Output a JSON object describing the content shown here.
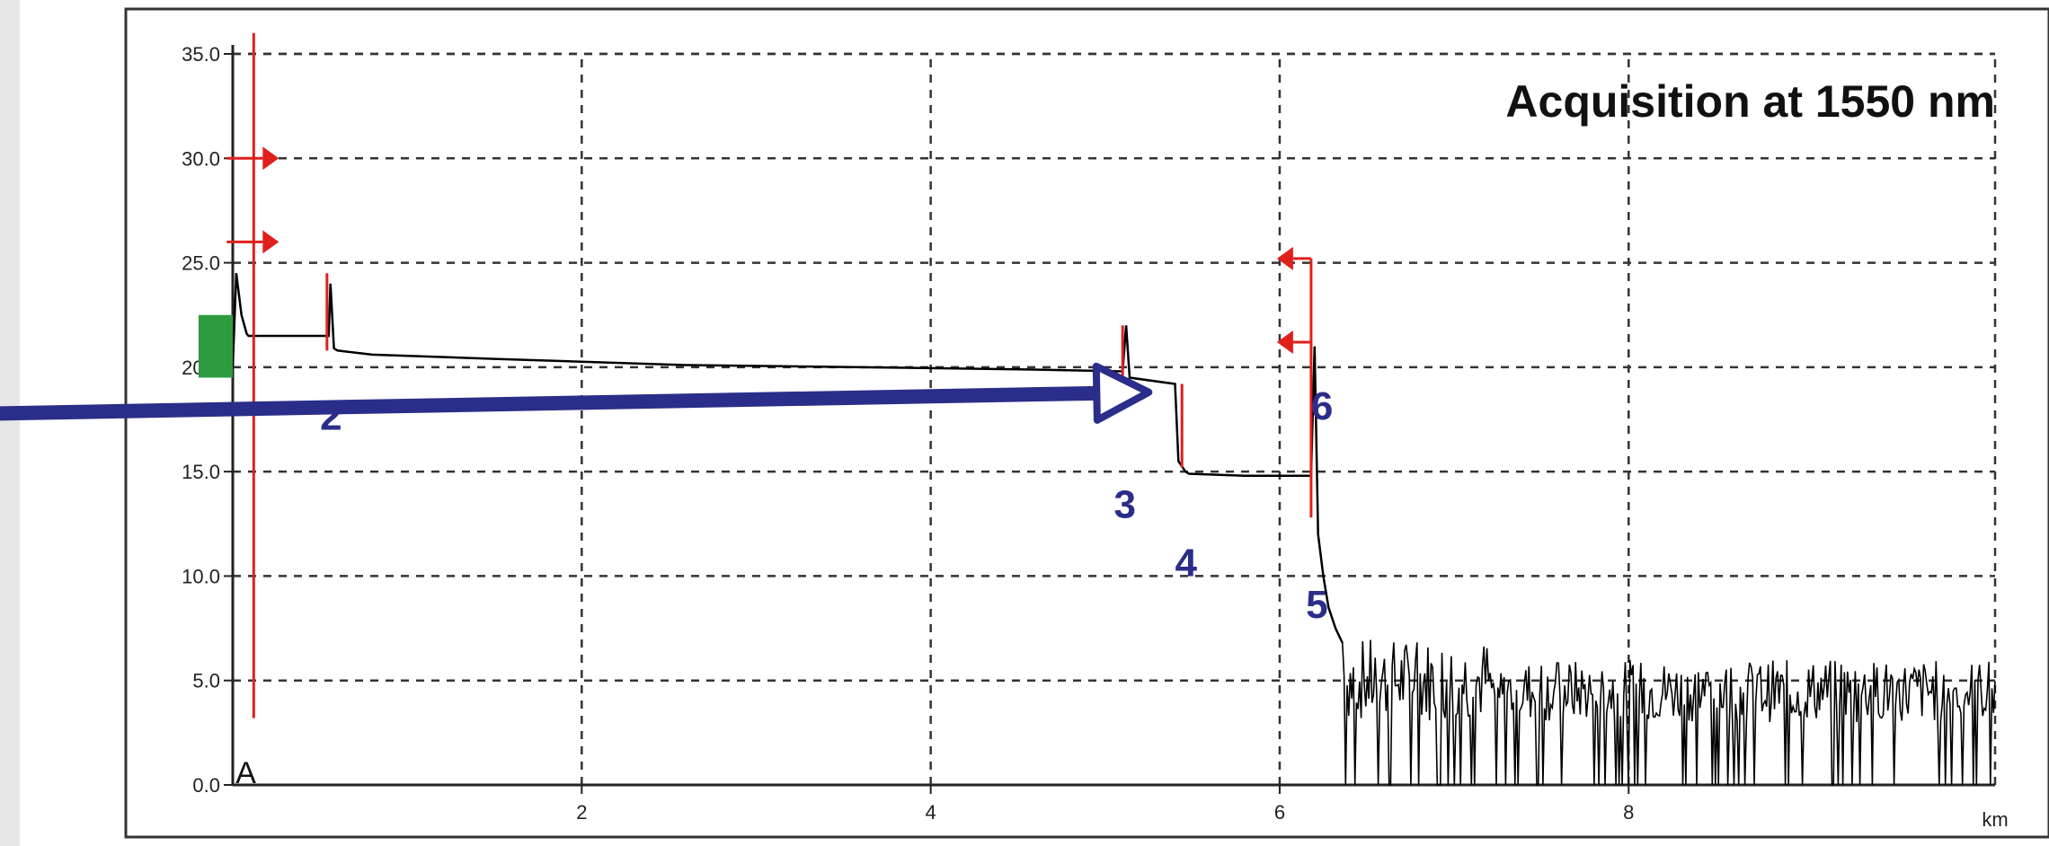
{
  "chart_data": {
    "type": "line",
    "title": "Acquisition at 1550 nm",
    "xlabel": "",
    "ylabel": "",
    "x_unit_label": "km",
    "xlim": [
      0,
      10.1
    ],
    "ylim": [
      0,
      35
    ],
    "xticks": [
      2,
      4,
      6,
      8
    ],
    "yticks": [
      0,
      5,
      10,
      15,
      20,
      25,
      30,
      35
    ],
    "ytick_labels": [
      "0.0",
      "5.0",
      "10.0",
      "15.0",
      "20.0",
      "25.0",
      "30.0",
      "35.0"
    ],
    "grid": true,
    "series": [
      {
        "color": "#000000",
        "x": [
          0.0,
          0.02,
          0.05,
          0.08,
          0.09,
          0.55,
          0.56,
          0.58,
          0.6,
          0.8,
          1.5,
          2.6,
          3.6,
          4.5,
          5.1,
          5.12,
          5.14,
          5.4,
          5.42,
          5.46,
          5.48,
          5.8,
          6.18,
          6.2,
          6.22,
          6.25,
          6.28,
          6.32,
          6.36
        ],
        "y": [
          20.0,
          24.5,
          22.5,
          21.6,
          21.5,
          21.5,
          24.0,
          20.9,
          20.8,
          20.6,
          20.4,
          20.1,
          20.0,
          19.9,
          19.8,
          22.0,
          19.5,
          19.2,
          15.5,
          15.0,
          14.9,
          14.8,
          14.8,
          21.0,
          12.0,
          10.0,
          8.5,
          7.5,
          6.8
        ],
        "noise_floor": {
          "x_start": 6.36,
          "x_end": 10.1,
          "y_min": 0.0,
          "y_max": 7.0
        }
      }
    ],
    "event_markers": [
      {
        "type": "cursor",
        "label": "A",
        "x": 0.12,
        "y_top": 36.0,
        "y_bottom": 3.2
      },
      {
        "type": "arrow-right",
        "x": 0.12,
        "y": 30.0
      },
      {
        "type": "arrow-right",
        "x": 0.12,
        "y": 26.0
      },
      {
        "type": "marker",
        "x": 0.54,
        "y_top": 24.5,
        "y_bottom": 20.8
      },
      {
        "type": "marker",
        "x": 5.1,
        "y_top": 22.0,
        "y_bottom": 19.6
      },
      {
        "type": "marker",
        "x": 5.44,
        "y_top": 19.2,
        "y_bottom": 15.2
      },
      {
        "type": "marker",
        "x": 6.18,
        "y_top": 25.2,
        "y_bottom": 12.8
      },
      {
        "type": "arrow-left",
        "x": 6.18,
        "y": 25.2
      },
      {
        "type": "arrow-left",
        "x": 6.18,
        "y": 21.2
      }
    ],
    "annotations": [
      {
        "label": "2",
        "x": 0.5,
        "y": 17.0
      },
      {
        "label": "3",
        "x": 5.05,
        "y": 12.8
      },
      {
        "label": "4",
        "x": 5.4,
        "y": 10.0
      },
      {
        "label": "5",
        "x": 6.15,
        "y": 8.0
      },
      {
        "label": "6",
        "x": 6.18,
        "y": 17.5
      }
    ],
    "overlay_arrow": {
      "color": "#2b2d8a",
      "from": {
        "x": -3.2,
        "y": 17.5
      },
      "to": {
        "x": 5.25,
        "y": 18.8
      }
    },
    "overlay_bar": {
      "color": "#2b2d8a",
      "x": -3.2,
      "y_top": 32.5,
      "y_bottom": 7.2
    },
    "launch_marker": {
      "color": "#2e9b3e",
      "x": 0.0,
      "y_top": 22.5,
      "y_bottom": 19.5
    }
  }
}
